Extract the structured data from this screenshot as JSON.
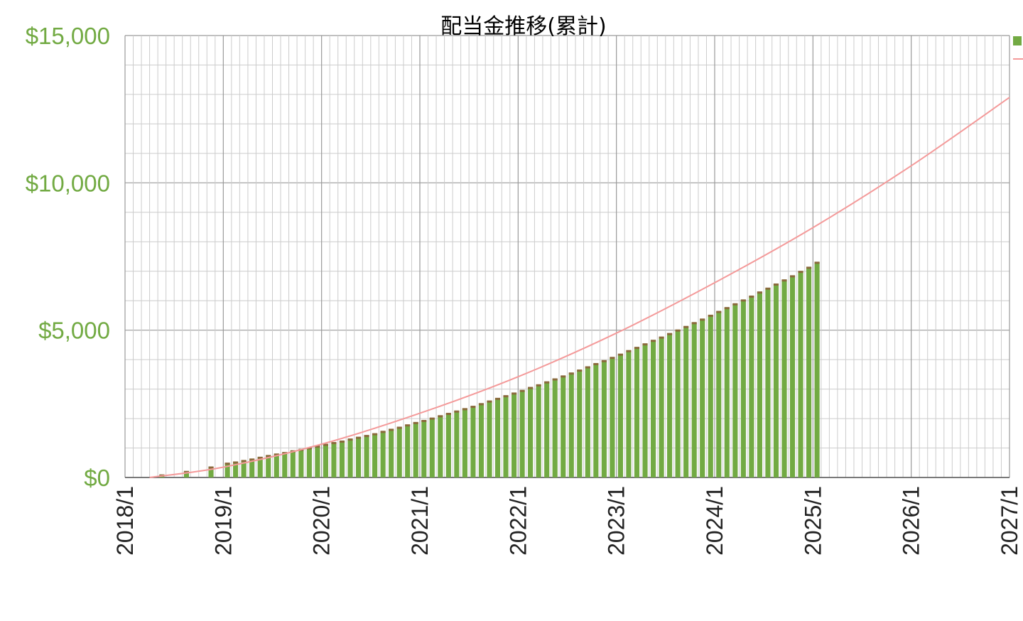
{
  "chart_data": {
    "type": "bar",
    "title": "配当金推移(累計)",
    "xlabel": "",
    "ylabel": "",
    "x_ticks": [
      "2018/1",
      "2019/1",
      "2020/1",
      "2021/1",
      "2022/1",
      "2023/1",
      "2024/1",
      "2025/1",
      "2026/1",
      "2027/1"
    ],
    "y_ticks": [
      "$0",
      "$5,000",
      "$10,000",
      "$15,000"
    ],
    "xlim": [
      "2018-01",
      "2027-01"
    ],
    "ylim": [
      0,
      15000
    ],
    "grid": true,
    "legend_position": "top-right",
    "series": [
      {
        "kind": "bar",
        "start_month": "2018-05",
        "values": [
          80,
          0,
          0,
          200,
          0,
          0,
          350,
          0,
          480,
          520,
          570,
          620,
          680,
          740,
          790,
          840,
          900,
          950,
          1000,
          1060,
          1120,
          1180,
          1230,
          1300,
          1360,
          1420,
          1480,
          1560,
          1630,
          1700,
          1780,
          1860,
          1930,
          2010,
          2090,
          2170,
          2250,
          2330,
          2410,
          2500,
          2590,
          2680,
          2770,
          2860,
          2950,
          3050,
          3140,
          3240,
          3340,
          3440,
          3540,
          3640,
          3750,
          3860,
          3960,
          4070,
          4180,
          4300,
          4410,
          4530,
          4650,
          4760,
          4880,
          5000,
          5120,
          5250,
          5370,
          5500,
          5630,
          5760,
          5890,
          6020,
          6150,
          6290,
          6420,
          6560,
          6700,
          6840,
          6990,
          7130,
          7300
        ]
      },
      {
        "kind": "line",
        "points": [
          {
            "x": "2018-04",
            "y": 0
          },
          {
            "x": "2019-01",
            "y": 350
          },
          {
            "x": "2020-01",
            "y": 1130
          },
          {
            "x": "2021-01",
            "y": 2180
          },
          {
            "x": "2022-01",
            "y": 3420
          },
          {
            "x": "2023-01",
            "y": 4900
          },
          {
            "x": "2024-01",
            "y": 6610
          },
          {
            "x": "2025-01",
            "y": 8480
          },
          {
            "x": "2026-01",
            "y": 10580
          },
          {
            "x": "2027-01",
            "y": 12900
          }
        ]
      }
    ]
  },
  "colors": {
    "bar": "#72aa43",
    "bar_top": "#8a6a3c",
    "line": "#f49a9a",
    "ytick": "#72aa43",
    "grid_major": "#9a9a9a",
    "grid_minor": "#cccccc"
  }
}
